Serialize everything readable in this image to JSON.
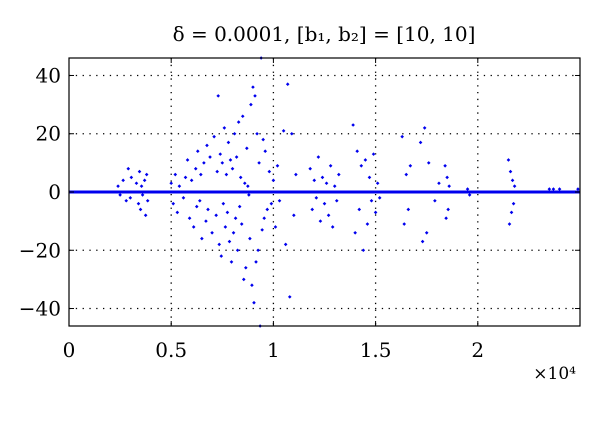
{
  "chart_data": {
    "type": "scatter",
    "title": "δ = 0.0001, [b₁, b₂] = [10, 10]",
    "xlabel": "",
    "ylabel": "",
    "x_scale_label": "×10⁴",
    "xlim": [
      0,
      25000
    ],
    "ylim": [
      -46,
      46
    ],
    "xticks": [
      0,
      5000,
      10000,
      15000,
      20000
    ],
    "xtick_labels": [
      "0",
      "0.5",
      "1",
      "1.5",
      "2"
    ],
    "yticks": [
      -40,
      -20,
      0,
      20,
      40
    ],
    "ytick_labels": [
      "−40",
      "−20",
      "0",
      "20",
      "40"
    ],
    "grid": true,
    "marker_color": "#0000ee",
    "series": [
      {
        "points": [
          [
            2400,
            2
          ],
          [
            2500,
            -1
          ],
          [
            2650,
            4
          ],
          [
            2800,
            -3
          ],
          [
            2900,
            8
          ],
          [
            3000,
            -2
          ],
          [
            3050,
            5
          ],
          [
            3300,
            3
          ],
          [
            3400,
            -4
          ],
          [
            3450,
            7
          ],
          [
            3500,
            -6
          ],
          [
            3550,
            2
          ],
          [
            3600,
            -1
          ],
          [
            3700,
            4
          ],
          [
            3750,
            -8
          ],
          [
            3800,
            6
          ],
          [
            3850,
            -3
          ],
          [
            5000,
            3
          ],
          [
            5100,
            -4
          ],
          [
            5200,
            6
          ],
          [
            5300,
            -7
          ],
          [
            5400,
            2
          ],
          [
            5600,
            -2
          ],
          [
            5700,
            5
          ],
          [
            5800,
            11
          ],
          [
            5900,
            -9
          ],
          [
            6000,
            4
          ],
          [
            6100,
            -12
          ],
          [
            6200,
            8
          ],
          [
            6250,
            -5
          ],
          [
            6300,
            14
          ],
          [
            6400,
            -3
          ],
          [
            6450,
            6
          ],
          [
            6500,
            -16
          ],
          [
            6600,
            10
          ],
          [
            6700,
            -10
          ],
          [
            6750,
            16
          ],
          [
            6800,
            -6
          ],
          [
            6900,
            12
          ],
          [
            7000,
            -14
          ],
          [
            7100,
            19
          ],
          [
            7200,
            -8
          ],
          [
            7250,
            7
          ],
          [
            7300,
            33
          ],
          [
            7350,
            -18
          ],
          [
            7400,
            13
          ],
          [
            7450,
            -22
          ],
          [
            7500,
            10
          ],
          [
            7550,
            -4
          ],
          [
            7600,
            22
          ],
          [
            7650,
            -12
          ],
          [
            7700,
            6
          ],
          [
            7750,
            -7
          ],
          [
            7800,
            17
          ],
          [
            7850,
            -17
          ],
          [
            7900,
            11
          ],
          [
            7950,
            -24
          ],
          [
            8000,
            8
          ],
          [
            8050,
            -14
          ],
          [
            8100,
            20
          ],
          [
            8150,
            -9
          ],
          [
            8200,
            12
          ],
          [
            8250,
            -20
          ],
          [
            8300,
            24
          ],
          [
            8350,
            -5
          ],
          [
            8400,
            5
          ],
          [
            8450,
            -11
          ],
          [
            8500,
            26
          ],
          [
            8550,
            -30
          ],
          [
            8600,
            3
          ],
          [
            8650,
            -26
          ],
          [
            8700,
            15
          ],
          [
            8750,
            2
          ],
          [
            8800,
            -1
          ],
          [
            8850,
            -16
          ],
          [
            8900,
            30
          ],
          [
            8950,
            -32
          ],
          [
            9000,
            36
          ],
          [
            9050,
            -38
          ],
          [
            9100,
            33
          ],
          [
            9150,
            -24
          ],
          [
            9200,
            20
          ],
          [
            9250,
            -20
          ],
          [
            9300,
            10
          ],
          [
            9350,
            -46
          ],
          [
            9400,
            46
          ],
          [
            9450,
            -13
          ],
          [
            9500,
            18
          ],
          [
            9550,
            -9
          ],
          [
            9600,
            14
          ],
          [
            9700,
            -6
          ],
          [
            9800,
            7
          ],
          [
            9900,
            -4
          ],
          [
            10000,
            4
          ],
          [
            10100,
            -12
          ],
          [
            10200,
            9
          ],
          [
            10300,
            -3
          ],
          [
            10500,
            21
          ],
          [
            10600,
            -18
          ],
          [
            10700,
            37
          ],
          [
            10800,
            -36
          ],
          [
            10900,
            20
          ],
          [
            11000,
            -8
          ],
          [
            11100,
            6
          ],
          [
            11800,
            8
          ],
          [
            11900,
            -6
          ],
          [
            12000,
            4
          ],
          [
            12100,
            -2
          ],
          [
            12200,
            12
          ],
          [
            12300,
            -10
          ],
          [
            12400,
            5
          ],
          [
            12500,
            -4
          ],
          [
            12600,
            3
          ],
          [
            12700,
            -8
          ],
          [
            12800,
            9
          ],
          [
            12900,
            -12
          ],
          [
            13000,
            2
          ],
          [
            13100,
            -3
          ],
          [
            13200,
            6
          ],
          [
            13900,
            23
          ],
          [
            14000,
            -14
          ],
          [
            14100,
            14
          ],
          [
            14200,
            -6
          ],
          [
            14300,
            9
          ],
          [
            14400,
            -20
          ],
          [
            14500,
            11
          ],
          [
            14600,
            -11
          ],
          [
            14700,
            5
          ],
          [
            14800,
            -3
          ],
          [
            14900,
            13
          ],
          [
            15000,
            -7
          ],
          [
            15100,
            3
          ],
          [
            15200,
            -2
          ],
          [
            16300,
            19
          ],
          [
            16400,
            -11
          ],
          [
            16500,
            6
          ],
          [
            16600,
            -6
          ],
          [
            16700,
            9
          ],
          [
            17200,
            17
          ],
          [
            17300,
            -17
          ],
          [
            17400,
            22
          ],
          [
            17500,
            -14
          ],
          [
            17600,
            10
          ],
          [
            17900,
            -3
          ],
          [
            18100,
            3
          ],
          [
            18400,
            9
          ],
          [
            18450,
            -9
          ],
          [
            18500,
            5
          ],
          [
            18550,
            -6
          ],
          [
            18600,
            2
          ],
          [
            19500,
            1
          ],
          [
            19600,
            -1
          ],
          [
            21500,
            11
          ],
          [
            21550,
            -11
          ],
          [
            21600,
            7
          ],
          [
            21650,
            -7
          ],
          [
            21700,
            4
          ],
          [
            21750,
            -4
          ],
          [
            21800,
            2
          ],
          [
            23500,
            1
          ],
          [
            23700,
            1
          ],
          [
            24000,
            1
          ],
          [
            24900,
            1
          ]
        ]
      }
    ]
  }
}
